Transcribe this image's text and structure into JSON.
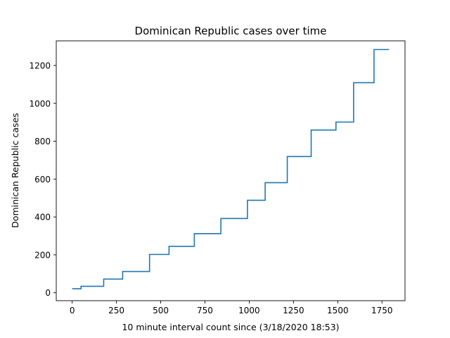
{
  "chart_data": {
    "type": "line",
    "title": "Dominican Republic cases over time",
    "xlabel": "10 minute interval count since (3/18/2020 18:53)",
    "ylabel": "Dominican Republic cases",
    "xlim": [
      -90,
      1880
    ],
    "ylim": [
      -42,
      1330
    ],
    "xticks": [
      0,
      250,
      500,
      750,
      1000,
      1250,
      1500,
      1750
    ],
    "yticks": [
      0,
      200,
      400,
      600,
      800,
      1000,
      1200
    ],
    "grid": false,
    "legend": "none",
    "series": [
      {
        "color": "#1f77b4",
        "step": true,
        "points": [
          [
            0,
            21
          ],
          [
            50,
            21
          ],
          [
            50,
            34
          ],
          [
            178,
            34
          ],
          [
            178,
            72
          ],
          [
            285,
            72
          ],
          [
            285,
            112
          ],
          [
            437,
            112
          ],
          [
            437,
            202
          ],
          [
            547,
            202
          ],
          [
            547,
            245
          ],
          [
            690,
            245
          ],
          [
            690,
            312
          ],
          [
            840,
            312
          ],
          [
            840,
            392
          ],
          [
            990,
            392
          ],
          [
            990,
            488
          ],
          [
            1090,
            488
          ],
          [
            1090,
            581
          ],
          [
            1215,
            581
          ],
          [
            1215,
            719
          ],
          [
            1350,
            719
          ],
          [
            1350,
            859
          ],
          [
            1490,
            859
          ],
          [
            1490,
            901
          ],
          [
            1590,
            901
          ],
          [
            1590,
            1109
          ],
          [
            1705,
            1109
          ],
          [
            1705,
            1284
          ],
          [
            1790,
            1284
          ]
        ]
      }
    ]
  }
}
